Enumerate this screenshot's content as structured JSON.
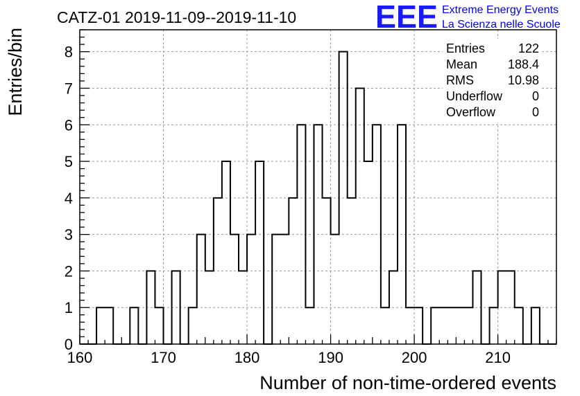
{
  "chart_data": {
    "type": "bar",
    "title": "CATZ-01 2019-11-09--2019-11-10",
    "xlabel": "Number of non-time-ordered events",
    "ylabel": "Entries/bin",
    "xlim": [
      160,
      217
    ],
    "ylim": [
      0,
      8.6
    ],
    "x_ticks": [
      160,
      170,
      180,
      190,
      200,
      210
    ],
    "y_ticks": [
      0,
      1,
      2,
      3,
      4,
      5,
      6,
      7,
      8
    ],
    "grid": true,
    "bin_width": 1,
    "bins": [
      {
        "x": 162,
        "value": 1
      },
      {
        "x": 163,
        "value": 1
      },
      {
        "x": 166,
        "value": 1
      },
      {
        "x": 168,
        "value": 2
      },
      {
        "x": 169,
        "value": 1
      },
      {
        "x": 171,
        "value": 2
      },
      {
        "x": 173,
        "value": 1
      },
      {
        "x": 174,
        "value": 3
      },
      {
        "x": 175,
        "value": 2
      },
      {
        "x": 176,
        "value": 4
      },
      {
        "x": 177,
        "value": 5
      },
      {
        "x": 178,
        "value": 3
      },
      {
        "x": 179,
        "value": 2
      },
      {
        "x": 180,
        "value": 3
      },
      {
        "x": 181,
        "value": 5
      },
      {
        "x": 183,
        "value": 3
      },
      {
        "x": 184,
        "value": 3
      },
      {
        "x": 185,
        "value": 4
      },
      {
        "x": 186,
        "value": 6
      },
      {
        "x": 187,
        "value": 1
      },
      {
        "x": 188,
        "value": 6
      },
      {
        "x": 189,
        "value": 4
      },
      {
        "x": 190,
        "value": 3
      },
      {
        "x": 191,
        "value": 8
      },
      {
        "x": 192,
        "value": 4
      },
      {
        "x": 193,
        "value": 7
      },
      {
        "x": 194,
        "value": 5
      },
      {
        "x": 195,
        "value": 6
      },
      {
        "x": 196,
        "value": 1
      },
      {
        "x": 197,
        "value": 2
      },
      {
        "x": 198,
        "value": 6
      },
      {
        "x": 199,
        "value": 1
      },
      {
        "x": 200,
        "value": 1
      },
      {
        "x": 202,
        "value": 1
      },
      {
        "x": 203,
        "value": 1
      },
      {
        "x": 204,
        "value": 1
      },
      {
        "x": 205,
        "value": 1
      },
      {
        "x": 206,
        "value": 1
      },
      {
        "x": 207,
        "value": 2
      },
      {
        "x": 209,
        "value": 1
      },
      {
        "x": 210,
        "value": 2
      },
      {
        "x": 211,
        "value": 2
      },
      {
        "x": 212,
        "value": 1
      },
      {
        "x": 214,
        "value": 1
      }
    ],
    "stats": [
      {
        "label": "Entries",
        "value": "122"
      },
      {
        "label": "Mean",
        "value": "188.4"
      },
      {
        "label": "RMS",
        "value": "10.98"
      },
      {
        "label": "Underflow",
        "value": "0"
      },
      {
        "label": "Overflow",
        "value": "0"
      }
    ],
    "stats_placement": "top-right"
  },
  "logo": {
    "mark": "EEE",
    "line1": "Extreme Energy Events",
    "line2": "La Scienza nelle Scuole",
    "color": "#0000ee"
  }
}
